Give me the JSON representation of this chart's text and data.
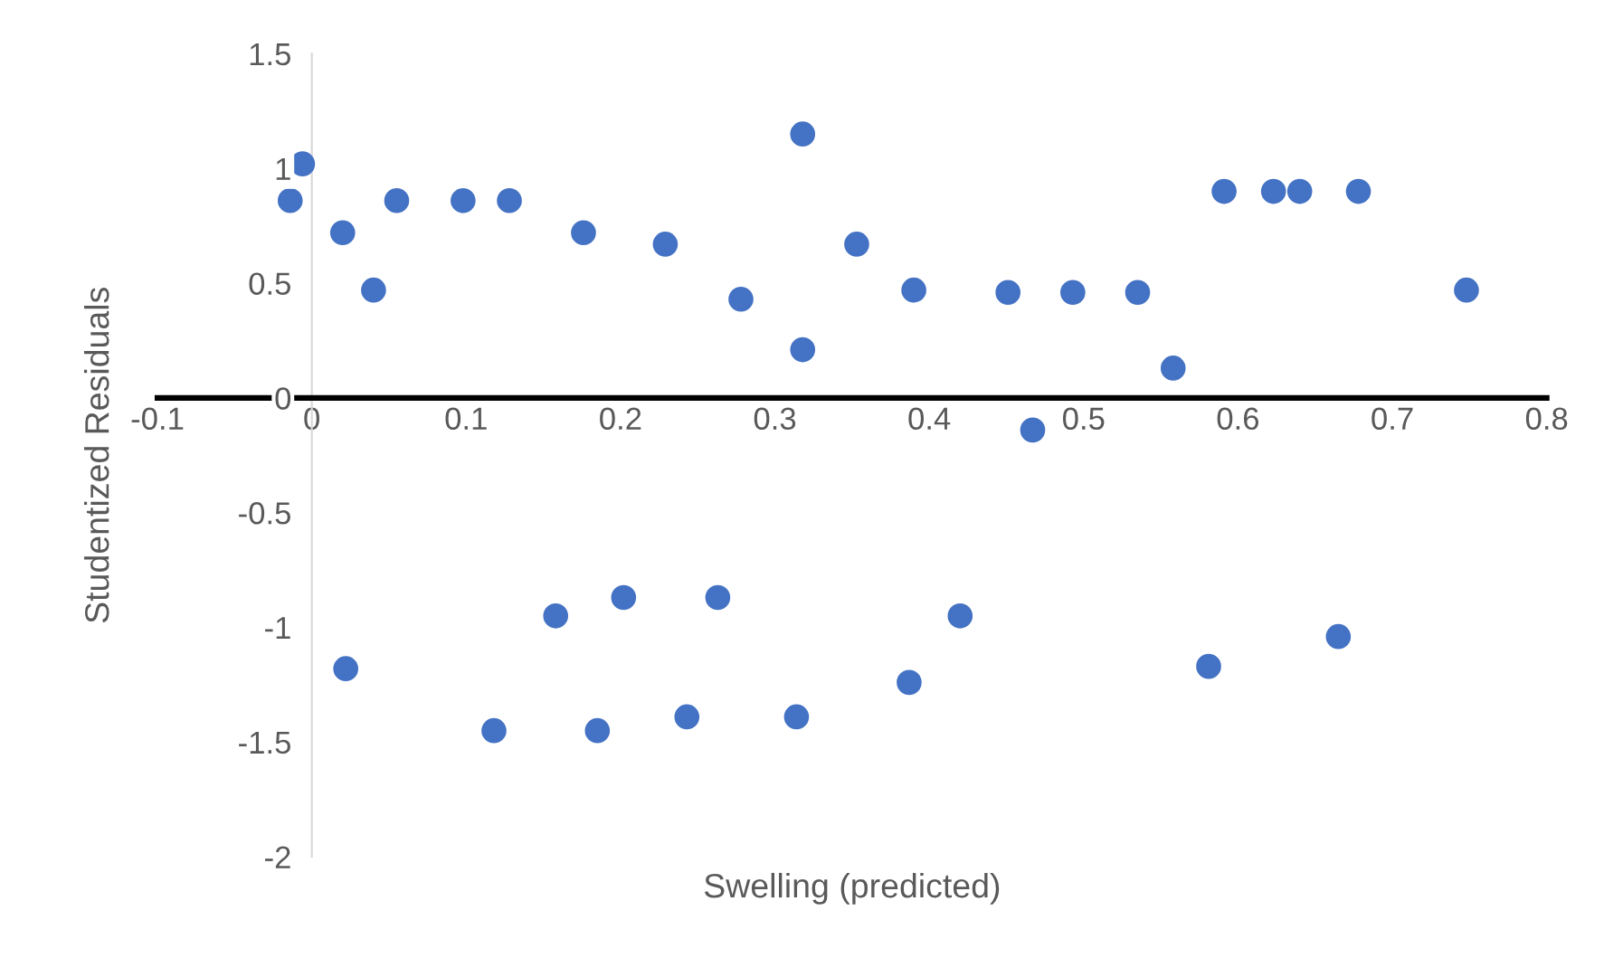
{
  "chart_data": {
    "type": "scatter",
    "xlabel": "Swelling (predicted)",
    "ylabel": "Studentized Residuals",
    "xlim": [
      -0.1,
      0.8
    ],
    "ylim": [
      -2,
      1.5
    ],
    "xticks": [
      -0.1,
      0,
      0.1,
      0.2,
      0.3,
      0.4,
      0.5,
      0.6,
      0.7,
      0.8
    ],
    "yticks": [
      -2,
      -1.5,
      -1,
      -0.5,
      0,
      0.5,
      1,
      1.5
    ],
    "marker": "circle",
    "series": [
      {
        "color": "#4472c4",
        "x": [
          -0.014,
          -0.006,
          0.02,
          0.04,
          0.055,
          0.098,
          0.128,
          0.176,
          0.229,
          0.278,
          0.318,
          0.318,
          0.353,
          0.39,
          0.451,
          0.493,
          0.535,
          0.558,
          0.467,
          0.591,
          0.623,
          0.64,
          0.678,
          0.748,
          0.022,
          0.118,
          0.158,
          0.185,
          0.202,
          0.243,
          0.263,
          0.314,
          0.387,
          0.42,
          0.581,
          0.665
        ],
        "values": [
          0.86,
          1.02,
          0.72,
          0.47,
          0.86,
          0.86,
          0.86,
          0.72,
          0.67,
          0.43,
          1.15,
          0.21,
          0.67,
          0.47,
          0.46,
          0.46,
          0.46,
          0.13,
          -0.14,
          0.9,
          0.9,
          0.9,
          0.9,
          0.47,
          -1.18,
          -1.45,
          -0.95,
          -1.45,
          -0.87,
          -1.39,
          -0.87,
          -1.39,
          -1.24,
          -0.95,
          -1.17,
          -1.04
        ]
      }
    ]
  }
}
